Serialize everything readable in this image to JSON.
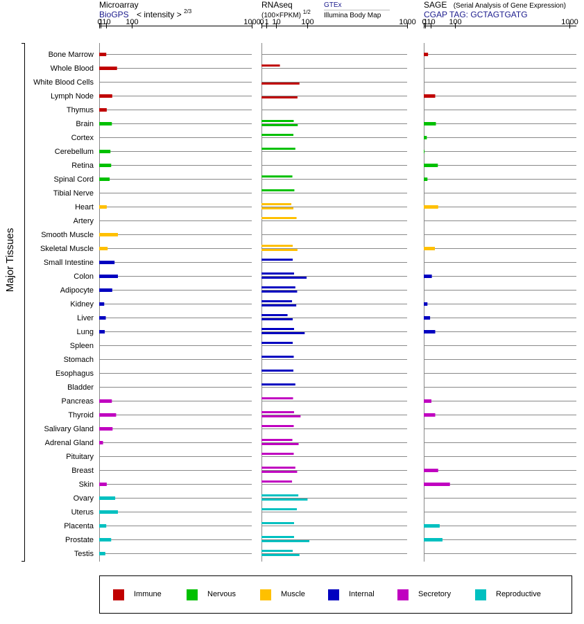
{
  "panels": [
    {
      "title": "Microarray",
      "subtitle": "BioGPS",
      "subtitle_suffix": "< intensity >",
      "exponent": "2/3",
      "scale": "2/3"
    },
    {
      "title": "RNAseq",
      "subtitle": "(100×FPKM)",
      "exponent": "1/2",
      "source_top": "GTEx",
      "source_bottom": "Illumina Body Map",
      "scale": "1/2"
    },
    {
      "title": "SAGE",
      "title_note": "(Serial Analysis of Gene Expression)",
      "subtitle": "CGAP TAG: GCTAGTGATG",
      "scale": "2/3"
    }
  ],
  "tick_labels": [
    "0",
    "1",
    "10",
    "100",
    "1000"
  ],
  "y_axis_label": "Major Tissues",
  "group_colors": {
    "Immune": "#c00000",
    "Nervous": "#00c000",
    "Muscle": "#ffc000",
    "Internal": "#0000c0",
    "Secretory": "#c000c0",
    "Reproductive": "#00c0c0"
  },
  "legend": [
    {
      "name": "Immune",
      "color": "#c00000"
    },
    {
      "name": "Nervous",
      "color": "#00c000"
    },
    {
      "name": "Muscle",
      "color": "#ffc000"
    },
    {
      "name": "Internal",
      "color": "#0000c0"
    },
    {
      "name": "Secretory",
      "color": "#c000c0"
    },
    {
      "name": "Reproductive",
      "color": "#00c0c0"
    }
  ],
  "chart_data": [
    {
      "type": "bar",
      "panel": "Microarray",
      "categories": [
        "Bone Marrow",
        "Whole Blood",
        "White Blood Cells",
        "Lymph Node",
        "Thymus",
        "Brain",
        "Cortex",
        "Cerebellum",
        "Retina",
        "Spinal Cord",
        "Tibial Nerve",
        "Heart",
        "Artery",
        "Smooth Muscle",
        "Skeletal Muscle",
        "Small Intestine",
        "Colon",
        "Adipocyte",
        "Kidney",
        "Liver",
        "Lung",
        "Spleen",
        "Stomach",
        "Esophagus",
        "Bladder",
        "Pancreas",
        "Thyroid",
        "Salivary Gland",
        "Adrenal Gland",
        "Pituitary",
        "Breast",
        "Skin",
        "Ovary",
        "Uterus",
        "Placenta",
        "Prostate",
        "Testis"
      ],
      "groups": [
        "Immune",
        "Immune",
        "Immune",
        "Immune",
        "Immune",
        "Nervous",
        "Nervous",
        "Nervous",
        "Nervous",
        "Nervous",
        "Nervous",
        "Muscle",
        "Muscle",
        "Muscle",
        "Muscle",
        "Internal",
        "Internal",
        "Internal",
        "Internal",
        "Internal",
        "Internal",
        "Internal",
        "Internal",
        "Internal",
        "Internal",
        "Secretory",
        "Secretory",
        "Secretory",
        "Secretory",
        "Secretory",
        "Secretory",
        "Secretory",
        "Reproductive",
        "Reproductive",
        "Reproductive",
        "Reproductive",
        "Reproductive"
      ],
      "values": [
        10,
        40,
        null,
        25,
        11,
        24,
        null,
        20,
        22,
        18,
        null,
        11,
        null,
        43,
        13,
        32,
        43,
        25,
        6,
        9,
        7,
        null,
        null,
        null,
        null,
        24,
        37,
        26,
        4,
        null,
        null,
        11,
        34,
        43,
        10,
        22,
        8
      ],
      "xticks": [
        0,
        1,
        10,
        100,
        1000
      ],
      "xlim": [
        0,
        1000
      ]
    },
    {
      "type": "bar",
      "panel": "RNAseq",
      "series": [
        {
          "name": "GTEx",
          "values": [
            null,
            16,
            null,
            null,
            null,
            49,
            48,
            54,
            null,
            45,
            51,
            42,
            58,
            null,
            46,
            46,
            50,
            54,
            44,
            32,
            50,
            46,
            49,
            48,
            54,
            47,
            50,
            49,
            45,
            49,
            54,
            44,
            64,
            59,
            50,
            50,
            46
          ]
        },
        {
          "name": "Illumina Body Map",
          "values": [
            null,
            null,
            68,
            61,
            null,
            62,
            null,
            null,
            null,
            null,
            null,
            48,
            null,
            null,
            61,
            null,
            96,
            60,
            57,
            46,
            88,
            null,
            null,
            null,
            null,
            null,
            72,
            null,
            65,
            null,
            60,
            null,
            100,
            null,
            null,
            108,
            68
          ]
        }
      ],
      "xticks": [
        0,
        1,
        10,
        100,
        1000
      ],
      "xlim": [
        0,
        1000
      ]
    },
    {
      "type": "bar",
      "panel": "SAGE",
      "values": [
        5,
        null,
        null,
        22,
        null,
        24,
        3,
        0.02,
        30,
        4,
        null,
        31,
        null,
        null,
        21,
        null,
        13,
        null,
        4,
        9,
        22,
        null,
        null,
        null,
        null,
        12,
        22,
        null,
        null,
        null,
        31,
        76,
        null,
        null,
        36,
        46,
        null
      ],
      "xticks": [
        0,
        1,
        10,
        100,
        1000
      ],
      "xlim": [
        0,
        1000
      ]
    }
  ]
}
